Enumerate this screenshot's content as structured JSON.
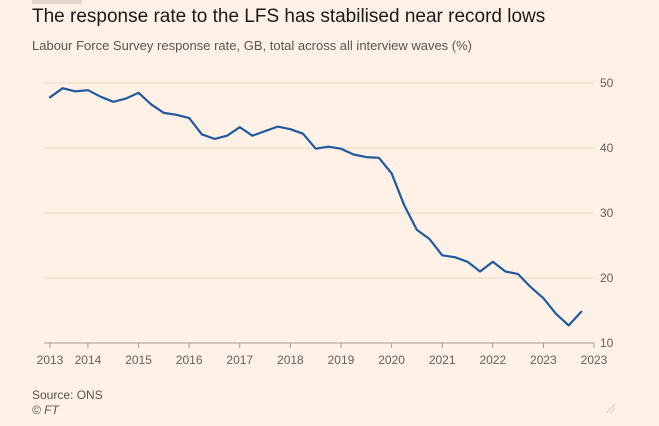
{
  "header": {
    "title": "The response rate to the LFS has stabilised near record lows",
    "subtitle": "Labour Force Survey response rate, GB, total across all interview waves (%)"
  },
  "footer": {
    "source": "Source: ONS",
    "credit": "© FT"
  },
  "colors": {
    "background": "#fff1e5",
    "line": "#1f5aa0",
    "grid": "#e8d6c7",
    "tick_text": "#66605c"
  },
  "chart_data": {
    "type": "line",
    "title": "The response rate to the LFS has stabilised near record lows",
    "subtitle": "Labour Force Survey response rate, GB, total across all interview waves (%)",
    "xlabel": "",
    "ylabel": "",
    "ylim": [
      10,
      50
    ],
    "yticks": [
      10,
      20,
      30,
      40,
      50
    ],
    "y_axis_side": "right",
    "xlim": [
      2013,
      2023.75
    ],
    "xticks": [
      {
        "value": 2013,
        "label": "2013"
      },
      {
        "value": 2013.75,
        "label": "2014"
      },
      {
        "value": 2014.75,
        "label": "2015"
      },
      {
        "value": 2015.75,
        "label": "2016"
      },
      {
        "value": 2016.75,
        "label": "2017"
      },
      {
        "value": 2017.75,
        "label": "2018"
      },
      {
        "value": 2018.75,
        "label": "2019"
      },
      {
        "value": 2019.75,
        "label": "2020"
      },
      {
        "value": 2020.75,
        "label": "2021"
      },
      {
        "value": 2021.75,
        "label": "2022"
      },
      {
        "value": 2022.75,
        "label": "2023"
      },
      {
        "value": 2023.75,
        "label": "2023"
      }
    ],
    "grid": true,
    "legend": "none",
    "series": [
      {
        "x": [
          2013.0,
          2013.25,
          2013.5,
          2013.75,
          2014.0,
          2014.25,
          2014.5,
          2014.75,
          2015.0,
          2015.25,
          2015.5,
          2015.75,
          2016.0,
          2016.25,
          2016.5,
          2016.75,
          2017.0,
          2017.25,
          2017.5,
          2017.75,
          2018.0,
          2018.25,
          2018.5,
          2018.75,
          2019.0,
          2019.25,
          2019.5,
          2019.75,
          2020.0,
          2020.25,
          2020.5,
          2020.75,
          2021.0,
          2021.25,
          2021.5,
          2021.75,
          2022.0,
          2022.25,
          2022.5,
          2022.75,
          2023.0,
          2023.25,
          2023.5
        ],
        "values": [
          47.8,
          49.2,
          48.7,
          48.9,
          47.9,
          47.1,
          47.6,
          48.5,
          46.7,
          45.4,
          45.1,
          44.6,
          42.1,
          41.4,
          41.9,
          43.2,
          41.9,
          42.6,
          43.3,
          42.9,
          42.2,
          39.9,
          40.2,
          39.9,
          39.0,
          38.6,
          38.5,
          36.1,
          31.2,
          27.4,
          26.0,
          23.5,
          23.2,
          22.5,
          21.0,
          22.5,
          21.0,
          20.6,
          18.6,
          16.9,
          14.5,
          12.7,
          14.8
        ]
      }
    ]
  }
}
